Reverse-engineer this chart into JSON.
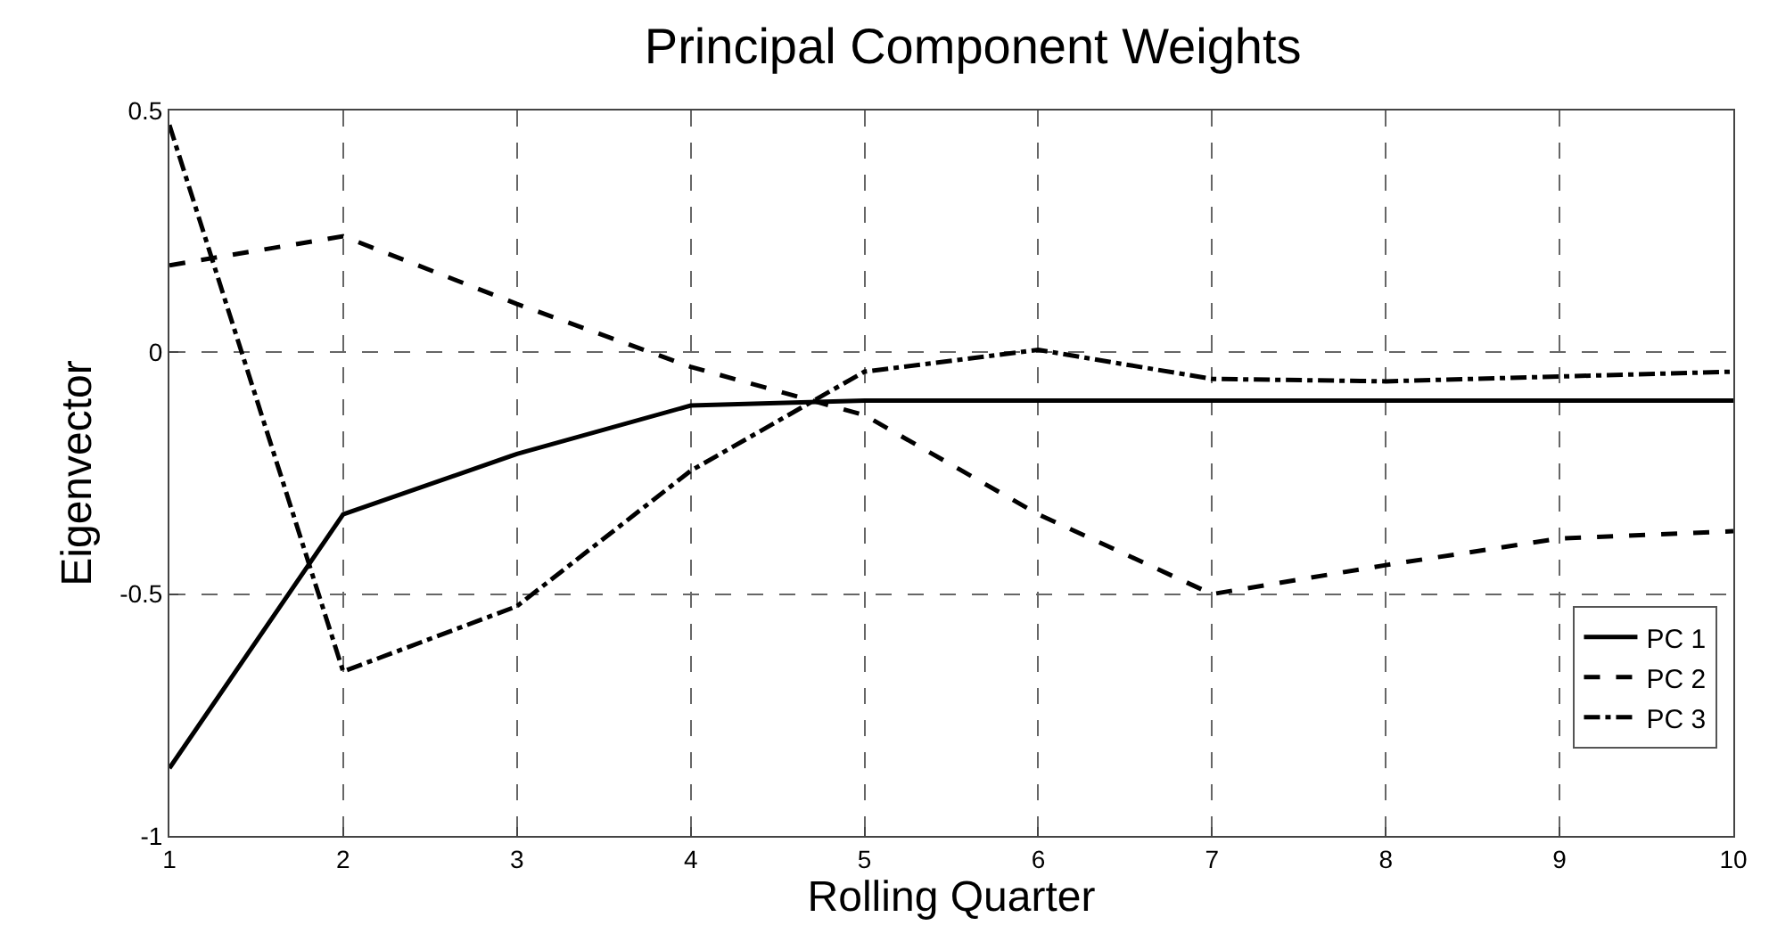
{
  "chart_data": {
    "type": "line",
    "title": "Principal Component Weights",
    "xlabel": "Rolling Quarter",
    "ylabel": "Eigenvector",
    "x": [
      1,
      2,
      3,
      4,
      5,
      6,
      7,
      8,
      9,
      10
    ],
    "series": [
      {
        "name": "PC 1",
        "color": "#000000",
        "line_style": "solid",
        "values": [
          -0.86,
          -0.335,
          -0.21,
          -0.11,
          -0.1,
          -0.1,
          -0.1,
          -0.1,
          -0.1,
          -0.1
        ]
      },
      {
        "name": "PC 2",
        "color": "#000000",
        "line_style": "dashed",
        "values": [
          0.18,
          0.24,
          0.1,
          -0.03,
          -0.13,
          -0.335,
          -0.5,
          -0.44,
          -0.385,
          -0.37
        ]
      },
      {
        "name": "PC 3",
        "color": "#000000",
        "line_style": "dashdot",
        "values": [
          0.47,
          -0.66,
          -0.525,
          -0.245,
          -0.04,
          0.005,
          -0.055,
          -0.06,
          -0.05,
          -0.04
        ]
      }
    ],
    "xlim": [
      1,
      10
    ],
    "xticks": [
      1,
      2,
      3,
      4,
      5,
      6,
      7,
      8,
      9,
      10
    ],
    "ylim": [
      -1,
      0.5
    ],
    "yticks": [
      -1,
      -0.5,
      0,
      0.5
    ],
    "grid": true,
    "legend": "bottom right",
    "marker": "none"
  }
}
